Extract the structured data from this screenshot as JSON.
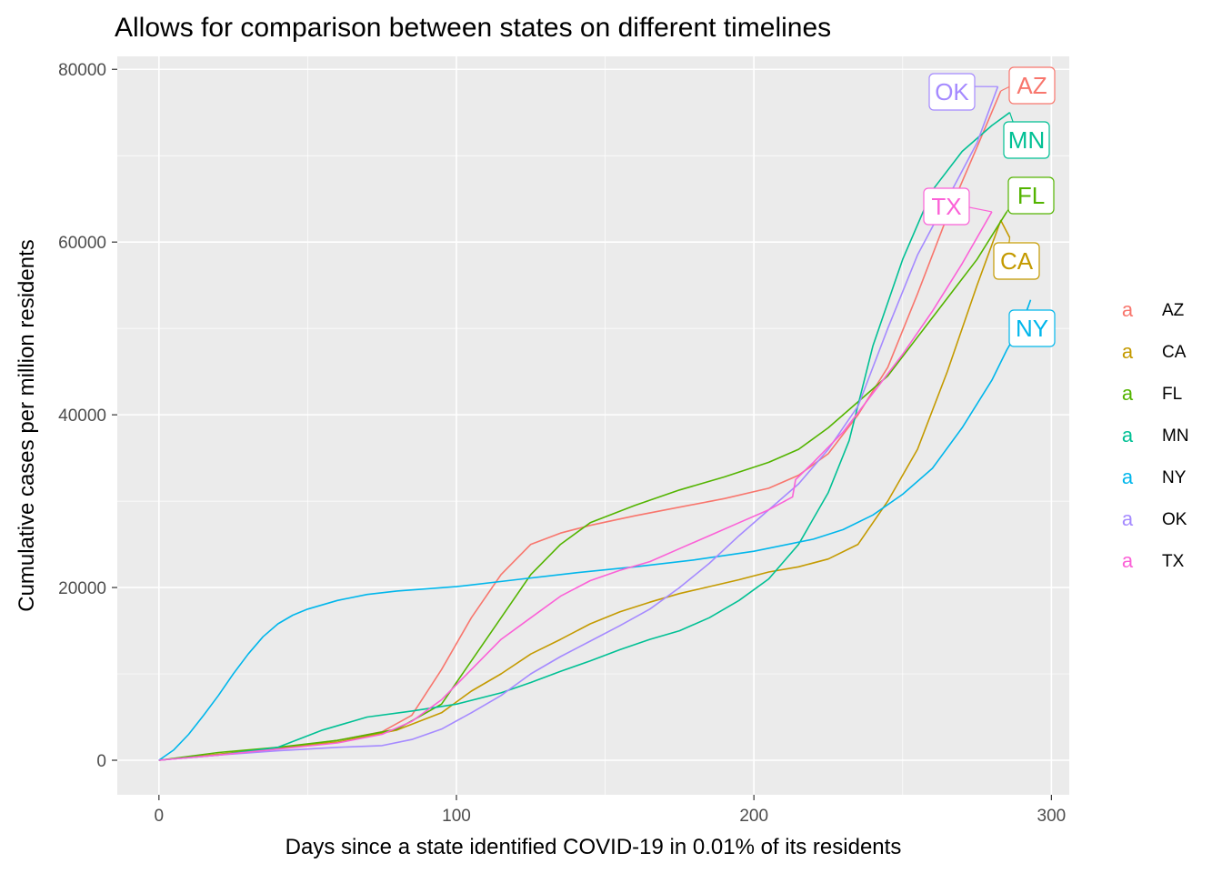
{
  "chart_data": {
    "type": "line",
    "title": "Allows for comparison between states on different timelines",
    "xlabel": "Days since a state identified COVID-19 in 0.01% of its residents",
    "ylabel": "Cumulative cases per million residents",
    "xlim": [
      -14,
      306
    ],
    "ylim": [
      -4000,
      81500
    ],
    "x_ticks": [
      0,
      100,
      200,
      300
    ],
    "x_tick_labels": [
      "0",
      "100",
      "200",
      "300"
    ],
    "y_ticks": [
      0,
      20000,
      40000,
      60000,
      80000
    ],
    "y_tick_labels": [
      "0",
      "20000",
      "40000",
      "60000",
      "80000"
    ],
    "grid": true,
    "legend_position": "right",
    "legend_key_glyph": "a",
    "series": [
      {
        "name": "AZ",
        "color": "#F8766D",
        "x": [
          0,
          20,
          40,
          60,
          75,
          85,
          95,
          105,
          115,
          125,
          135,
          145,
          160,
          175,
          190,
          205,
          215,
          225,
          235,
          245,
          255,
          265,
          275,
          283
        ],
        "y": [
          0,
          700,
          1400,
          2300,
          3300,
          5200,
          10500,
          16500,
          21500,
          25000,
          26300,
          27200,
          28300,
          29300,
          30300,
          31500,
          33000,
          35500,
          40000,
          45500,
          54000,
          63000,
          71000,
          77500
        ]
      },
      {
        "name": "CA",
        "color": "#C49A00",
        "x": [
          0,
          20,
          40,
          60,
          80,
          95,
          105,
          115,
          125,
          135,
          145,
          155,
          165,
          175,
          185,
          195,
          205,
          215,
          225,
          235,
          245,
          255,
          265,
          275,
          283,
          286
        ],
        "y": [
          0,
          700,
          1400,
          2100,
          3500,
          5500,
          8000,
          10000,
          12300,
          14000,
          15800,
          17200,
          18300,
          19300,
          20100,
          20900,
          21800,
          22400,
          23300,
          25000,
          30000,
          36000,
          45000,
          55000,
          62500,
          60500
        ]
      },
      {
        "name": "FL",
        "color": "#53B400",
        "x": [
          0,
          20,
          40,
          60,
          80,
          95,
          105,
          115,
          125,
          135,
          145,
          160,
          175,
          190,
          205,
          215,
          225,
          235,
          245,
          255,
          265,
          275,
          285
        ],
        "y": [
          0,
          900,
          1500,
          2300,
          3600,
          6500,
          11500,
          16500,
          21500,
          25000,
          27500,
          29500,
          31300,
          32800,
          34500,
          36000,
          38500,
          41500,
          44500,
          49000,
          53500,
          58000,
          63500
        ]
      },
      {
        "name": "MN",
        "color": "#00C094",
        "x": [
          0,
          20,
          40,
          55,
          70,
          85,
          100,
          115,
          125,
          135,
          145,
          155,
          165,
          175,
          185,
          195,
          205,
          215,
          225,
          232,
          240,
          250,
          260,
          270,
          280,
          286
        ],
        "y": [
          0,
          600,
          1500,
          3500,
          5000,
          5700,
          6500,
          7800,
          9000,
          10300,
          11500,
          12800,
          14000,
          15000,
          16500,
          18500,
          21000,
          25000,
          31000,
          37000,
          48000,
          58000,
          66000,
          70500,
          73500,
          75000
        ]
      },
      {
        "name": "NY",
        "color": "#00B6EB",
        "x": [
          0,
          5,
          10,
          15,
          20,
          25,
          30,
          35,
          40,
          45,
          50,
          60,
          70,
          80,
          100,
          120,
          140,
          160,
          180,
          200,
          220,
          230,
          240,
          250,
          260,
          270,
          280,
          285,
          290,
          293
        ],
        "y": [
          0,
          1200,
          3000,
          5200,
          7500,
          10000,
          12300,
          14300,
          15800,
          16800,
          17500,
          18500,
          19200,
          19600,
          20100,
          20900,
          21700,
          22400,
          23200,
          24200,
          25600,
          26700,
          28400,
          30800,
          33800,
          38500,
          44000,
          47500,
          50500,
          53300
        ]
      },
      {
        "name": "OK",
        "color": "#A58AFF",
        "x": [
          0,
          20,
          40,
          60,
          75,
          85,
          95,
          105,
          115,
          125,
          135,
          145,
          155,
          165,
          175,
          185,
          195,
          205,
          215,
          225,
          235,
          245,
          255,
          265,
          275,
          282
        ],
        "y": [
          0,
          600,
          1100,
          1500,
          1700,
          2400,
          3600,
          5500,
          7500,
          10000,
          12000,
          13800,
          15600,
          17500,
          20000,
          22800,
          26000,
          29000,
          32000,
          36000,
          41000,
          50000,
          58500,
          65000,
          71500,
          78000
        ]
      },
      {
        "name": "TX",
        "color": "#FB61D7",
        "x": [
          0,
          20,
          40,
          60,
          75,
          85,
          95,
          105,
          115,
          125,
          135,
          145,
          155,
          165,
          175,
          185,
          195,
          205,
          213,
          214,
          220,
          230,
          240,
          250,
          260,
          270,
          280
        ],
        "y": [
          0,
          600,
          1300,
          2000,
          3000,
          4500,
          7000,
          10500,
          14000,
          16500,
          19000,
          20800,
          22000,
          23000,
          24500,
          26000,
          27500,
          29000,
          30500,
          32500,
          34500,
          38000,
          42500,
          47000,
          52000,
          57500,
          63500
        ]
      }
    ],
    "annotations": [
      {
        "label": "AZ",
        "color": "#F8766D"
      },
      {
        "label": "OK",
        "color": "#A58AFF"
      },
      {
        "label": "MN",
        "color": "#00C094"
      },
      {
        "label": "TX",
        "color": "#FB61D7"
      },
      {
        "label": "FL",
        "color": "#53B400"
      },
      {
        "label": "CA",
        "color": "#C49A00"
      },
      {
        "label": "NY",
        "color": "#00B6EB"
      }
    ]
  }
}
